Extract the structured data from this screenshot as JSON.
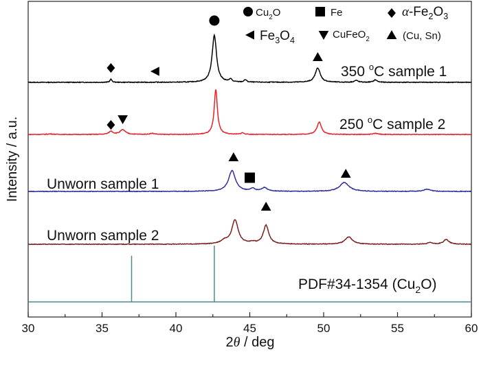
{
  "chart_data": {
    "type": "line",
    "title": "",
    "xlabel_theta": "θ",
    "xlabel_unit": "/ deg",
    "ylabel": "Intensity / a.u.",
    "xlim": [
      30,
      60
    ],
    "ticks": [
      "30",
      "35",
      "40",
      "45",
      "50",
      "55",
      "60"
    ],
    "series": [
      {
        "name": "350 °C sample 1",
        "label_main": "350 ",
        "label_sup": "o",
        "label_rest": "C sample 1",
        "color": "#000000",
        "base": 4.0,
        "peaks": [
          {
            "x": 35.6,
            "h": 0.05,
            "w": 0.08
          },
          {
            "x": 42.6,
            "h": 0.78,
            "w": 0.18
          },
          {
            "x": 43.7,
            "h": 0.05,
            "w": 0.09
          },
          {
            "x": 44.7,
            "h": 0.04,
            "w": 0.1
          },
          {
            "x": 49.6,
            "h": 0.24,
            "w": 0.2
          },
          {
            "x": 52.2,
            "h": 0.03,
            "w": 0.15
          },
          {
            "x": 53.5,
            "h": 0.04,
            "w": 0.14
          }
        ]
      },
      {
        "name": "250 °C sample 2",
        "label_main": "250 ",
        "label_sup": "o",
        "label_rest": "C sample 2",
        "color": "#e8202a",
        "base": 3.0,
        "peaks": [
          {
            "x": 31.5,
            "h": 0.01,
            "w": 0.3
          },
          {
            "x": 35.6,
            "h": 0.06,
            "w": 0.16
          },
          {
            "x": 36.4,
            "h": 0.09,
            "w": 0.22
          },
          {
            "x": 38.4,
            "h": 0.02,
            "w": 0.2
          },
          {
            "x": 42.7,
            "h": 0.86,
            "w": 0.13
          },
          {
            "x": 44.5,
            "h": 0.03,
            "w": 0.12
          },
          {
            "x": 49.7,
            "h": 0.24,
            "w": 0.18
          },
          {
            "x": 53.5,
            "h": 0.02,
            "w": 0.2
          }
        ]
      },
      {
        "name": "Unworn sample 1",
        "label_main": "Unworn sample 1",
        "label_sup": "",
        "label_rest": "",
        "color": "#2e2e9a",
        "base": 2.0,
        "peaks": [
          {
            "x": 43.8,
            "h": 0.4,
            "w": 0.28
          },
          {
            "x": 45.2,
            "h": 0.05,
            "w": 0.18
          },
          {
            "x": 46.0,
            "h": 0.07,
            "w": 0.22
          },
          {
            "x": 51.4,
            "h": 0.17,
            "w": 0.38
          },
          {
            "x": 57.0,
            "h": 0.04,
            "w": 0.28
          }
        ]
      },
      {
        "name": "Unworn sample 2",
        "label_main": "Unworn sample 2",
        "label_sup": "",
        "label_rest": "",
        "color": "#7a1e1e",
        "base": 1.0,
        "peaks": [
          {
            "x": 43.3,
            "h": 0.06,
            "w": 0.3
          },
          {
            "x": 44.0,
            "h": 0.46,
            "w": 0.26
          },
          {
            "x": 45.2,
            "h": 0.03,
            "w": 0.2
          },
          {
            "x": 46.1,
            "h": 0.36,
            "w": 0.22
          },
          {
            "x": 51.7,
            "h": 0.14,
            "w": 0.3
          },
          {
            "x": 57.2,
            "h": 0.03,
            "w": 0.2
          },
          {
            "x": 58.3,
            "h": 0.09,
            "w": 0.22
          }
        ]
      }
    ],
    "reference": {
      "label_main": "PDF#34-1354 (Cu",
      "label_sub": "2",
      "label_end": "O)",
      "color": "#4d8a8a",
      "lines": [
        {
          "x": 37.0,
          "h": 0.82
        },
        {
          "x": 42.6,
          "h": 1.0
        }
      ]
    },
    "legend": [
      {
        "symbol": "circle",
        "text": "Cu",
        "sub": "2",
        "end": "O",
        "prefix": ""
      },
      {
        "symbol": "square",
        "text": "Fe",
        "sub": "",
        "end": "",
        "prefix": ""
      },
      {
        "symbol": "diamond",
        "text": "-Fe",
        "sub": "2",
        "end": "O",
        "sub2": "3",
        "prefix": "α"
      },
      {
        "symbol": "left-triangle",
        "text": "Fe",
        "sub": "3",
        "end": "O",
        "sub2": "4",
        "prefix": ""
      },
      {
        "symbol": "down-triangle",
        "text": "CuFeO",
        "sub": "2",
        "end": "",
        "prefix": ""
      },
      {
        "symbol": "up-triangle",
        "text": "(Cu, Sn)",
        "sub": "",
        "end": "",
        "prefix": ""
      }
    ],
    "markers": [
      {
        "series": 0,
        "symbol": "circle",
        "x": 42.6
      },
      {
        "series": 0,
        "symbol": "diamond",
        "x": 35.6
      },
      {
        "series": 0,
        "symbol": "left-triangle",
        "x": 38.6
      },
      {
        "series": 0,
        "symbol": "up-triangle",
        "x": 49.6
      },
      {
        "series": 1,
        "symbol": "diamond",
        "x": 35.6
      },
      {
        "series": 1,
        "symbol": "down-triangle",
        "x": 36.4
      },
      {
        "series": 2,
        "symbol": "up-triangle",
        "x": 43.9
      },
      {
        "series": 2,
        "symbol": "square",
        "x": 45.0
      },
      {
        "series": 2,
        "symbol": "up-triangle",
        "x": 51.5
      },
      {
        "series": 3,
        "symbol": "up-triangle",
        "x": 46.1
      }
    ]
  }
}
